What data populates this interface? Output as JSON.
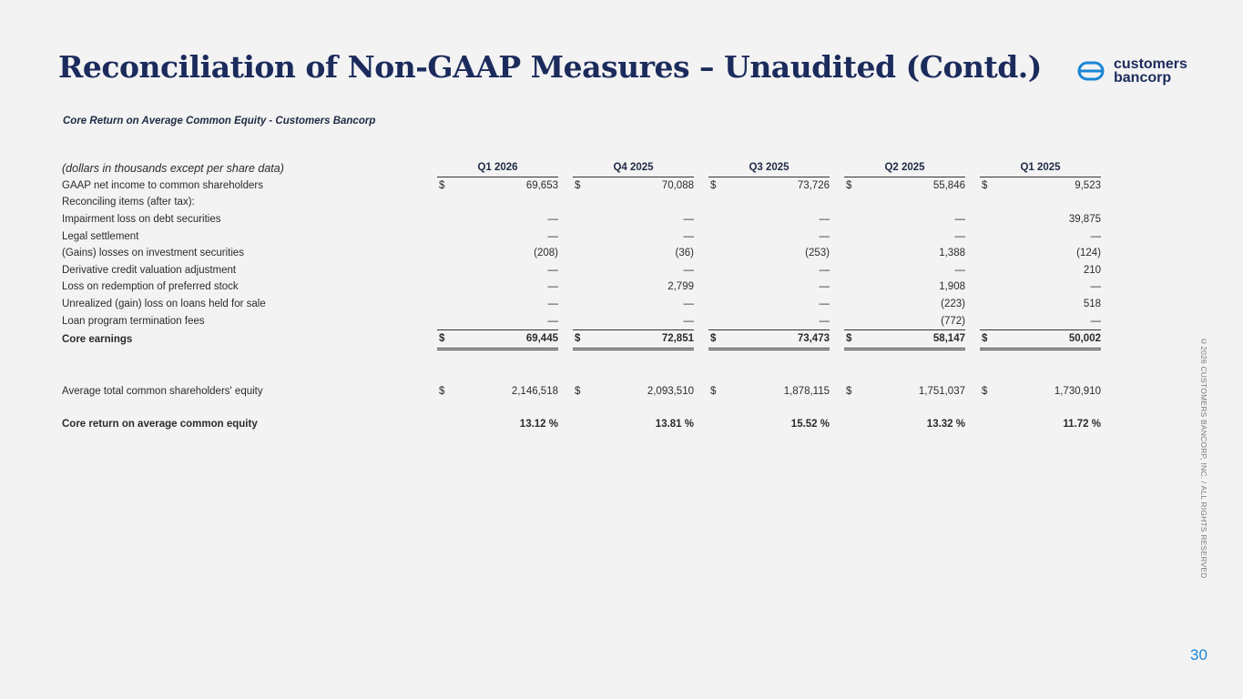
{
  "header": {
    "title": "Reconciliation of Non-GAAP Measures – Unaudited (Contd.)",
    "logo_line1": "customers",
    "logo_line2": "bancorp"
  },
  "section": {
    "subtitle": "Core Return on Average Common Equity - Customers Bancorp",
    "units_note": "(dollars in thousands except per share data)"
  },
  "columns": [
    "Q1 2026",
    "Q4 2025",
    "Q3 2025",
    "Q2 2025",
    "Q1 2025"
  ],
  "rows": {
    "gaap_net_income": {
      "label": "GAAP net income to common shareholders",
      "values": [
        "69,653",
        "70,088",
        "73,726",
        "55,846",
        "9,523"
      ]
    },
    "reconciling": {
      "label": "Reconciling items (after tax):"
    },
    "impairment": {
      "label": "Impairment loss on debt securities",
      "values": [
        "—",
        "—",
        "—",
        "—",
        "39,875"
      ]
    },
    "legal": {
      "label": "Legal settlement",
      "values": [
        "—",
        "—",
        "—",
        "—",
        "—"
      ]
    },
    "gains_losses": {
      "label": "(Gains) losses on investment securities",
      "values": [
        "(208)",
        "(36)",
        "(253)",
        "1,388",
        "(124)"
      ]
    },
    "dcva": {
      "label": "Derivative credit valuation adjustment",
      "values": [
        "—",
        "—",
        "—",
        "—",
        "210"
      ]
    },
    "preferred": {
      "label": "Loss on redemption of preferred stock",
      "values": [
        "—",
        "2,799",
        "—",
        "1,908",
        "—"
      ]
    },
    "unrealized": {
      "label": "Unrealized (gain) loss on loans held for sale",
      "values": [
        "—",
        "—",
        "—",
        "(223)",
        "518"
      ]
    },
    "termination": {
      "label": "Loan program termination fees",
      "values": [
        "—",
        "—",
        "—",
        "(772)",
        "—"
      ]
    },
    "core_earnings": {
      "label": "Core earnings",
      "values": [
        "69,445",
        "72,851",
        "73,473",
        "58,147",
        "50,002"
      ]
    },
    "avg_equity": {
      "label": "Average total common shareholders' equity",
      "values": [
        "2,146,518",
        "2,093,510",
        "1,878,115",
        "1,751,037",
        "1,730,910"
      ]
    },
    "core_return": {
      "label": "Core return on average common equity",
      "values": [
        "13.12 %",
        "13.81 %",
        "15.52 %",
        "13.32 %",
        "11.72 %"
      ]
    }
  },
  "currency_symbol": "$",
  "footer": {
    "copyright": "©2026 CUSTOMERS BANCORP, INC. / ALL RIGHTS RESERVED",
    "page_number": "30"
  },
  "colors": {
    "title": "#1b2b5c",
    "page_number": "#1a86d6",
    "background": "#f3f3f3"
  }
}
